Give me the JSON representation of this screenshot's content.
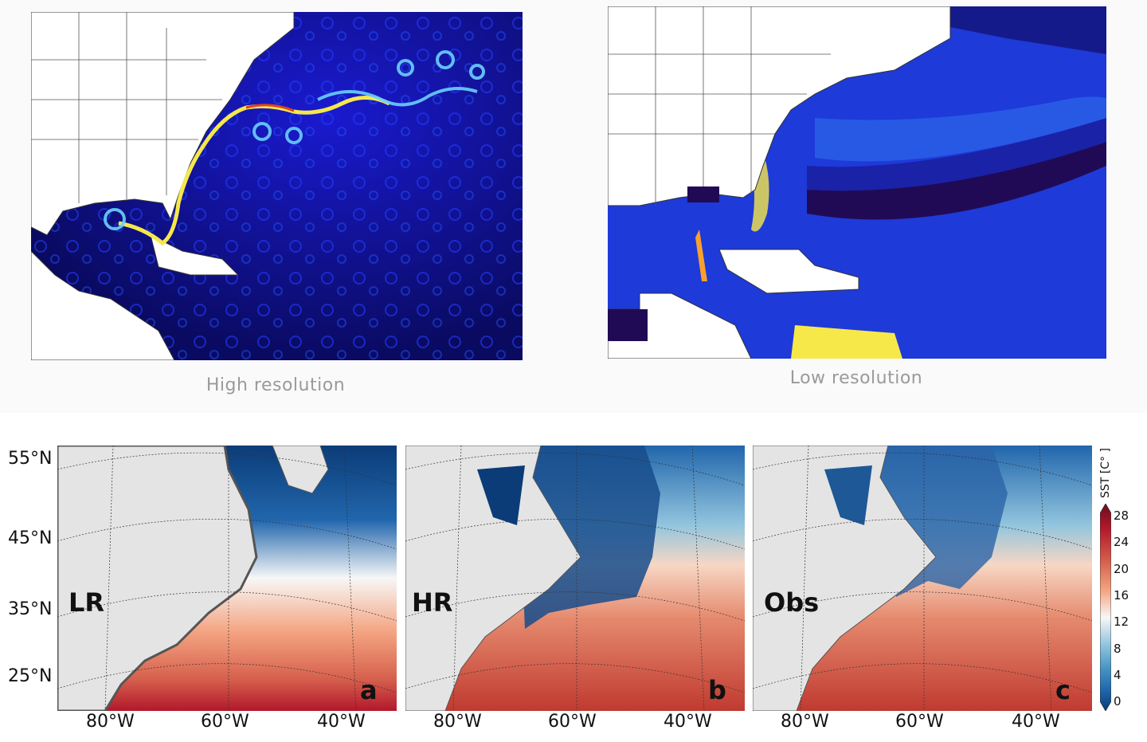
{
  "top": {
    "left_caption": "High resolution",
    "right_caption": "Low resolution"
  },
  "bottom": {
    "lat_labels": [
      "55°N",
      "45°N",
      "35°N",
      "25°N"
    ],
    "lon_labels": [
      "80°W",
      "60°W",
      "40°W"
    ],
    "panels": [
      {
        "tag": "LR",
        "letter": "a"
      },
      {
        "tag": "HR",
        "letter": "b"
      },
      {
        "tag": "Obs",
        "letter": "c"
      }
    ],
    "colorbar": {
      "label": "SST [C° ]",
      "ticks": [
        "28",
        "24",
        "20",
        "16",
        "12",
        "8",
        "4",
        "0"
      ],
      "colors": [
        "#6b0d1e",
        "#b2182b",
        "#d6604d",
        "#f4a582",
        "#f7f7f7",
        "#92c5de",
        "#4393c3",
        "#2166ac",
        "#0b3c78"
      ]
    }
  }
}
